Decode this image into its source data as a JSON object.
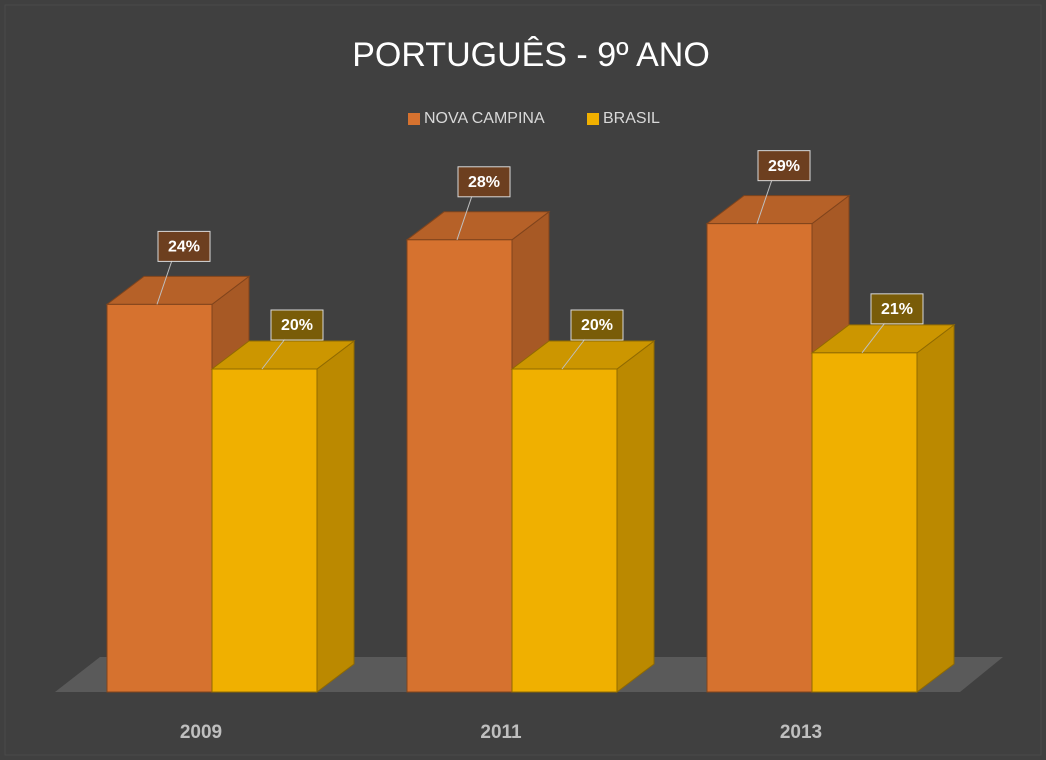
{
  "chart_data": {
    "type": "bar3d",
    "title": "PORTUGUÊS - 9º ANO",
    "categories": [
      "2009",
      "2011",
      "2013"
    ],
    "series": [
      {
        "name": "NOVA CAMPINA",
        "color": "#d6722f",
        "values": [
          24,
          28,
          29
        ],
        "value_labels": [
          "24%",
          "28%",
          "29%"
        ]
      },
      {
        "name": "BRASIL",
        "color": "#f0b000",
        "values": [
          20,
          20,
          21
        ],
        "value_labels": [
          "20%",
          "20%",
          "21%"
        ]
      }
    ],
    "legend": "top"
  }
}
